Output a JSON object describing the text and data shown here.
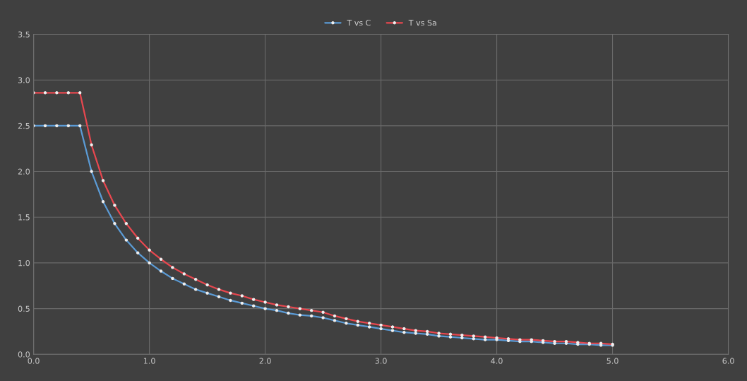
{
  "chart_data": {
    "type": "line",
    "x": [
      0,
      0.1,
      0.2,
      0.3,
      0.4,
      0.5,
      0.6,
      0.7,
      0.8,
      0.9,
      1.0,
      1.1,
      1.2,
      1.3,
      1.4,
      1.5,
      1.6,
      1.7,
      1.8,
      1.9,
      2.0,
      2.1,
      2.2,
      2.3,
      2.4,
      2.5,
      2.6,
      2.7,
      2.8,
      2.9,
      3.0,
      3.1,
      3.2,
      3.3,
      3.4,
      3.5,
      3.6,
      3.7,
      3.8,
      3.9,
      4.0,
      4.1,
      4.2,
      4.3,
      4.4,
      4.5,
      4.6,
      4.7,
      4.8,
      4.9,
      5.0
    ],
    "series": [
      {
        "name": "T vs C",
        "color": "#5b9bd5",
        "values": [
          2.5,
          2.5,
          2.5,
          2.5,
          2.5,
          2.0,
          1.67,
          1.43,
          1.25,
          1.11,
          1.0,
          0.91,
          0.83,
          0.77,
          0.71,
          0.67,
          0.63,
          0.59,
          0.56,
          0.53,
          0.5,
          0.48,
          0.45,
          0.43,
          0.42,
          0.4,
          0.37,
          0.34,
          0.32,
          0.3,
          0.28,
          0.26,
          0.24,
          0.23,
          0.22,
          0.2,
          0.19,
          0.18,
          0.17,
          0.16,
          0.16,
          0.15,
          0.14,
          0.14,
          0.13,
          0.12,
          0.12,
          0.11,
          0.11,
          0.1,
          0.1
        ]
      },
      {
        "name": "T vs Sa",
        "color": "#e8474f",
        "values": [
          2.86,
          2.86,
          2.86,
          2.86,
          2.86,
          2.29,
          1.9,
          1.63,
          1.43,
          1.27,
          1.14,
          1.04,
          0.95,
          0.88,
          0.82,
          0.76,
          0.71,
          0.67,
          0.64,
          0.6,
          0.57,
          0.54,
          0.52,
          0.5,
          0.48,
          0.46,
          0.42,
          0.39,
          0.36,
          0.34,
          0.32,
          0.3,
          0.28,
          0.26,
          0.25,
          0.23,
          0.22,
          0.21,
          0.2,
          0.19,
          0.18,
          0.17,
          0.16,
          0.16,
          0.15,
          0.14,
          0.14,
          0.13,
          0.12,
          0.12,
          0.11
        ]
      }
    ],
    "xlim": [
      0,
      6
    ],
    "ylim": [
      0,
      3.5
    ],
    "xticks": [
      {
        "value": 0,
        "label": "0.0"
      },
      {
        "value": 1,
        "label": "1.0"
      },
      {
        "value": 2,
        "label": "2.0"
      },
      {
        "value": 3,
        "label": "3.0"
      },
      {
        "value": 4,
        "label": "4.0"
      },
      {
        "value": 5,
        "label": "5.0"
      },
      {
        "value": 6,
        "label": "6.0"
      }
    ],
    "yticks": [
      {
        "value": 0,
        "label": "0.0"
      },
      0.5,
      {
        "value": 1,
        "label": "1.0"
      },
      1.5,
      {
        "value": 2,
        "label": "2.0"
      },
      2.5,
      {
        "value": 3,
        "label": "3.0"
      },
      3.5
    ],
    "grid": true,
    "legend": "top",
    "marker": "circle",
    "line_style": "solid"
  }
}
